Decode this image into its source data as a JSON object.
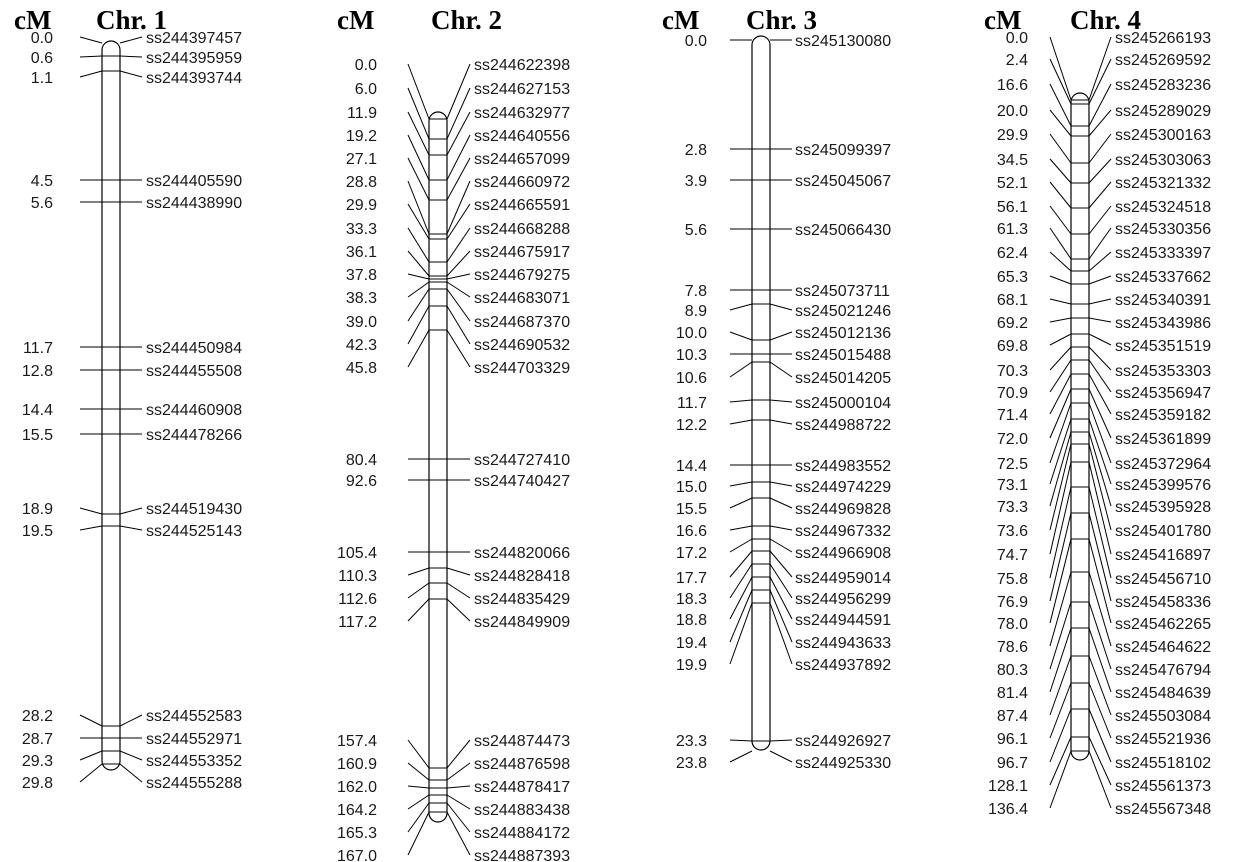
{
  "chromosomes": [
    {
      "unit_label": "cM",
      "name": "Chr. 1",
      "markers": [
        {
          "pos": "0.0",
          "id": "ss244397457"
        },
        {
          "pos": "0.6",
          "id": "ss244395959"
        },
        {
          "pos": "1.1",
          "id": "ss244393744"
        },
        {
          "pos": "4.5",
          "id": "ss244405590"
        },
        {
          "pos": "5.6",
          "id": "ss244438990"
        },
        {
          "pos": "11.7",
          "id": "ss244450984"
        },
        {
          "pos": "12.8",
          "id": "ss244455508"
        },
        {
          "pos": "14.4",
          "id": "ss244460908"
        },
        {
          "pos": "15.5",
          "id": "ss244478266"
        },
        {
          "pos": "18.9",
          "id": "ss244519430"
        },
        {
          "pos": "19.5",
          "id": "ss244525143"
        },
        {
          "pos": "28.2",
          "id": "ss244552583"
        },
        {
          "pos": "28.7",
          "id": "ss244552971"
        },
        {
          "pos": "29.3",
          "id": "ss244553352"
        },
        {
          "pos": "29.8",
          "id": "ss244555288"
        }
      ]
    },
    {
      "unit_label": "cM",
      "name": "Chr. 2",
      "markers": [
        {
          "pos": "0.0",
          "id": "ss244622398"
        },
        {
          "pos": "6.0",
          "id": "ss244627153"
        },
        {
          "pos": "11.9",
          "id": "ss244632977"
        },
        {
          "pos": "19.2",
          "id": "ss244640556"
        },
        {
          "pos": "27.1",
          "id": "ss244657099"
        },
        {
          "pos": "28.8",
          "id": "ss244660972"
        },
        {
          "pos": "29.9",
          "id": "ss244665591"
        },
        {
          "pos": "33.3",
          "id": "ss244668288"
        },
        {
          "pos": "36.1",
          "id": "ss244675917"
        },
        {
          "pos": "37.8",
          "id": "ss244679275"
        },
        {
          "pos": "38.3",
          "id": "ss244683071"
        },
        {
          "pos": "39.0",
          "id": "ss244687370"
        },
        {
          "pos": "42.3",
          "id": "ss244690532"
        },
        {
          "pos": "45.8",
          "id": "ss244703329"
        },
        {
          "pos": "80.4",
          "id": "ss244727410"
        },
        {
          "pos": "92.6",
          "id": "ss244740427"
        },
        {
          "pos": "105.4",
          "id": "ss244820066"
        },
        {
          "pos": "110.3",
          "id": "ss244828418"
        },
        {
          "pos": "112.6",
          "id": "ss244835429"
        },
        {
          "pos": "117.2",
          "id": "ss244849909"
        },
        {
          "pos": "157.4",
          "id": "ss244874473"
        },
        {
          "pos": "160.9",
          "id": "ss244876598"
        },
        {
          "pos": "162.0",
          "id": "ss244878417"
        },
        {
          "pos": "164.2",
          "id": "ss244883438"
        },
        {
          "pos": "165.3",
          "id": "ss244884172"
        },
        {
          "pos": "167.0",
          "id": "ss244887393"
        }
      ]
    },
    {
      "unit_label": "cM",
      "name": "Chr. 3",
      "markers": [
        {
          "pos": "0.0",
          "id": "ss245130080"
        },
        {
          "pos": "2.8",
          "id": "ss245099397"
        },
        {
          "pos": "3.9",
          "id": "ss245045067"
        },
        {
          "pos": "5.6",
          "id": "ss245066430"
        },
        {
          "pos": "7.8",
          "id": "ss245073711"
        },
        {
          "pos": "8.9",
          "id": "ss245021246"
        },
        {
          "pos": "10.0",
          "id": "ss245012136"
        },
        {
          "pos": "10.3",
          "id": "ss245015488"
        },
        {
          "pos": "10.6",
          "id": "ss245014205"
        },
        {
          "pos": "11.7",
          "id": "ss245000104"
        },
        {
          "pos": "12.2",
          "id": "ss244988722"
        },
        {
          "pos": "14.4",
          "id": "ss244983552"
        },
        {
          "pos": "15.0",
          "id": "ss244974229"
        },
        {
          "pos": "15.5",
          "id": "ss244969828"
        },
        {
          "pos": "16.6",
          "id": "ss244967332"
        },
        {
          "pos": "17.2",
          "id": "ss244966908"
        },
        {
          "pos": "17.7",
          "id": "ss244959014"
        },
        {
          "pos": "18.3",
          "id": "ss244956299"
        },
        {
          "pos": "18.8",
          "id": "ss244944591"
        },
        {
          "pos": "19.4",
          "id": "ss244943633"
        },
        {
          "pos": "19.9",
          "id": "ss244937892"
        },
        {
          "pos": "23.3",
          "id": "ss244926927"
        },
        {
          "pos": "23.8",
          "id": "ss244925330"
        }
      ]
    },
    {
      "unit_label": "cM",
      "name": "Chr. 4",
      "markers": [
        {
          "pos": "0.0",
          "id": "ss245266193"
        },
        {
          "pos": "2.4",
          "id": "ss245269592"
        },
        {
          "pos": "16.6",
          "id": "ss245283236"
        },
        {
          "pos": "20.0",
          "id": "ss245289029"
        },
        {
          "pos": "29.9",
          "id": "ss245300163"
        },
        {
          "pos": "34.5",
          "id": "ss245303063"
        },
        {
          "pos": "52.1",
          "id": "ss245321332"
        },
        {
          "pos": "56.1",
          "id": "ss245324518"
        },
        {
          "pos": "61.3",
          "id": "ss245330356"
        },
        {
          "pos": "62.4",
          "id": "ss245333397"
        },
        {
          "pos": "65.3",
          "id": "ss245337662"
        },
        {
          "pos": "68.1",
          "id": "ss245340391"
        },
        {
          "pos": "69.2",
          "id": "ss245343986"
        },
        {
          "pos": "69.8",
          "id": "ss245351519"
        },
        {
          "pos": "70.3",
          "id": "ss245353303"
        },
        {
          "pos": "70.9",
          "id": "ss245356947"
        },
        {
          "pos": "71.4",
          "id": "ss245359182"
        },
        {
          "pos": "72.0",
          "id": "ss245361899"
        },
        {
          "pos": "72.5",
          "id": "ss245372964"
        },
        {
          "pos": "73.1",
          "id": "ss245399576"
        },
        {
          "pos": "73.3",
          "id": "ss245395928"
        },
        {
          "pos": "73.6",
          "id": "ss245401780"
        },
        {
          "pos": "74.7",
          "id": "ss245416897"
        },
        {
          "pos": "75.8",
          "id": "ss245456710"
        },
        {
          "pos": "76.9",
          "id": "ss245458336"
        },
        {
          "pos": "78.0",
          "id": "ss245462265"
        },
        {
          "pos": "78.6",
          "id": "ss245464622"
        },
        {
          "pos": "80.3",
          "id": "ss245476794"
        },
        {
          "pos": "81.4",
          "id": "ss245484639"
        },
        {
          "pos": "87.4",
          "id": "ss245503084"
        },
        {
          "pos": "96.1",
          "id": "ss245521936"
        },
        {
          "pos": "96.7",
          "id": "ss245518102"
        },
        {
          "pos": "128.1",
          "id": "ss245561373"
        },
        {
          "pos": "136.4",
          "id": "ss245567348"
        }
      ]
    }
  ]
}
